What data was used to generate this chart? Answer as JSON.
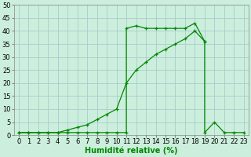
{
  "xlabel": "Humidité relative (%)",
  "ylabel": "",
  "bg_color": "#cceedd",
  "grid_color": "#aacccc",
  "line_color": "#008800",
  "marker_color": "#008800",
  "xlim": [
    -0.5,
    23.5
  ],
  "ylim": [
    0,
    50
  ],
  "yticks": [
    0,
    5,
    10,
    15,
    20,
    25,
    30,
    35,
    40,
    45,
    50
  ],
  "xticks": [
    0,
    1,
    2,
    3,
    4,
    5,
    6,
    7,
    8,
    9,
    10,
    11,
    12,
    13,
    14,
    15,
    16,
    17,
    18,
    19,
    20,
    21,
    22,
    23
  ],
  "curve_x": [
    0,
    1,
    2,
    3,
    4,
    5,
    6,
    7,
    8,
    9,
    10,
    11,
    11,
    12,
    13,
    14,
    15,
    16,
    17,
    18,
    19,
    19,
    20,
    21,
    22,
    23
  ],
  "curve_y": [
    1,
    1,
    1,
    1,
    1,
    1,
    1,
    1,
    1,
    1,
    1,
    1,
    41,
    42,
    41,
    41,
    41,
    41,
    41,
    43,
    36,
    1,
    5,
    1,
    1,
    1
  ],
  "diag_x": [
    0,
    1,
    2,
    3,
    4,
    5,
    6,
    7,
    8,
    9,
    10,
    11,
    12,
    13,
    14,
    15,
    16,
    17,
    18,
    19
  ],
  "diag_y": [
    1,
    1,
    1,
    1,
    1,
    2,
    3,
    4,
    6,
    8,
    10,
    20,
    25,
    28,
    31,
    33,
    35,
    37,
    40,
    36
  ],
  "xlabel_fontsize": 7,
  "tick_fontsize": 6
}
